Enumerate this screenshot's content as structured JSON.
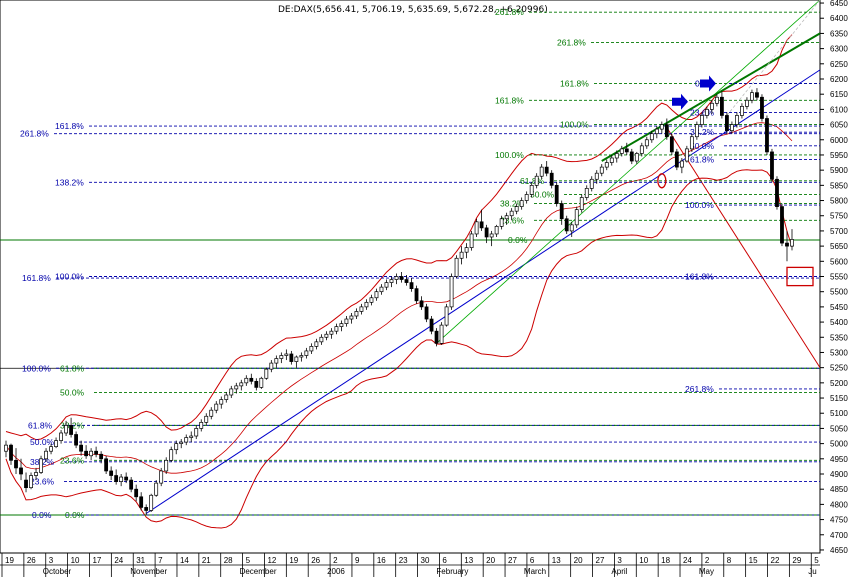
{
  "chart_data": {
    "type": "candlestick",
    "title": "DE:DAX(5,656.41, 5,706.19, 5,635.69, 5,672.28, +6.20996)",
    "ylim": [
      4640,
      6460
    ],
    "y_ticks": [
      4650,
      4700,
      4750,
      4800,
      4850,
      4900,
      4950,
      5000,
      5050,
      5100,
      5150,
      5200,
      5250,
      5300,
      5350,
      5400,
      5450,
      5500,
      5550,
      5600,
      5650,
      5700,
      5750,
      5800,
      5850,
      5900,
      5950,
      6000,
      6050,
      6100,
      6150,
      6200,
      6250,
      6300,
      6350,
      6400,
      6450
    ],
    "x_ticks": [
      "19",
      "26",
      "3",
      "10",
      "17",
      "24",
      "31",
      "7",
      "14",
      "21",
      "28",
      "5",
      "12",
      "19",
      "26",
      "2",
      "9",
      "16",
      "23",
      "30",
      "6",
      "13",
      "20",
      "27",
      "6",
      "13",
      "20",
      "27",
      "3",
      "10",
      "18",
      "24",
      "2",
      "8",
      "15",
      "22",
      "29",
      "5"
    ],
    "months": [
      "October",
      "November",
      "December",
      "2006",
      "February",
      "March",
      "April",
      "May",
      "Ju"
    ],
    "candles": [
      [
        4975,
        5010,
        4955,
        4995
      ],
      [
        4995,
        5000,
        4930,
        4945
      ],
      [
        4945,
        4985,
        4900,
        4920
      ],
      [
        4920,
        4950,
        4880,
        4900
      ],
      [
        4880,
        4905,
        4840,
        4855
      ],
      [
        4855,
        4905,
        4850,
        4895
      ],
      [
        4895,
        4920,
        4880,
        4905
      ],
      [
        4905,
        4960,
        4900,
        4950
      ],
      [
        4950,
        4985,
        4940,
        4975
      ],
      [
        4975,
        5000,
        4965,
        4990
      ],
      [
        4990,
        5020,
        4985,
        5010
      ],
      [
        5010,
        5045,
        5000,
        5035
      ],
      [
        5035,
        5075,
        5025,
        5060
      ],
      [
        5060,
        5085,
        5020,
        5030
      ],
      [
        5030,
        5040,
        4985,
        4995
      ],
      [
        4995,
        5010,
        4960,
        4975
      ],
      [
        4975,
        4995,
        4950,
        4960
      ],
      [
        4960,
        4985,
        4945,
        4975
      ],
      [
        4975,
        4990,
        4955,
        4965
      ],
      [
        4965,
        4975,
        4935,
        4950
      ],
      [
        4950,
        4960,
        4900,
        4910
      ],
      [
        4910,
        4925,
        4880,
        4895
      ],
      [
        4895,
        4915,
        4865,
        4875
      ],
      [
        4875,
        4900,
        4860,
        4890
      ],
      [
        4890,
        4905,
        4870,
        4880
      ],
      [
        4880,
        4890,
        4840,
        4850
      ],
      [
        4850,
        4865,
        4810,
        4825
      ],
      [
        4825,
        4840,
        4780,
        4790
      ],
      [
        4790,
        4800,
        4765,
        4780
      ],
      [
        4780,
        4835,
        4775,
        4830
      ],
      [
        4830,
        4880,
        4825,
        4870
      ],
      [
        4870,
        4920,
        4860,
        4910
      ],
      [
        4910,
        4955,
        4900,
        4945
      ],
      [
        4945,
        4990,
        4940,
        4980
      ],
      [
        4980,
        5010,
        4965,
        5000
      ],
      [
        5000,
        5015,
        4985,
        5005
      ],
      [
        5005,
        5030,
        4995,
        5020
      ],
      [
        5020,
        5040,
        5005,
        5025
      ],
      [
        5025,
        5060,
        5015,
        5050
      ],
      [
        5050,
        5080,
        5040,
        5070
      ],
      [
        5070,
        5100,
        5060,
        5090
      ],
      [
        5090,
        5120,
        5080,
        5110
      ],
      [
        5110,
        5140,
        5100,
        5130
      ],
      [
        5130,
        5155,
        5115,
        5145
      ],
      [
        5145,
        5170,
        5135,
        5160
      ],
      [
        5160,
        5190,
        5150,
        5180
      ],
      [
        5180,
        5200,
        5165,
        5190
      ],
      [
        5190,
        5210,
        5175,
        5200
      ],
      [
        5200,
        5225,
        5190,
        5215
      ],
      [
        5215,
        5230,
        5195,
        5205
      ],
      [
        5205,
        5215,
        5175,
        5185
      ],
      [
        5185,
        5220,
        5180,
        5215
      ],
      [
        5215,
        5250,
        5210,
        5245
      ],
      [
        5245,
        5275,
        5235,
        5265
      ],
      [
        5265,
        5290,
        5250,
        5280
      ],
      [
        5280,
        5300,
        5265,
        5290
      ],
      [
        5290,
        5310,
        5275,
        5295
      ],
      [
        5295,
        5305,
        5260,
        5270
      ],
      [
        5270,
        5290,
        5250,
        5285
      ],
      [
        5285,
        5300,
        5270,
        5290
      ],
      [
        5290,
        5315,
        5280,
        5305
      ],
      [
        5305,
        5330,
        5295,
        5320
      ],
      [
        5320,
        5345,
        5310,
        5335
      ],
      [
        5335,
        5360,
        5325,
        5350
      ],
      [
        5350,
        5370,
        5340,
        5360
      ],
      [
        5360,
        5380,
        5345,
        5370
      ],
      [
        5370,
        5395,
        5360,
        5385
      ],
      [
        5385,
        5405,
        5370,
        5395
      ],
      [
        5395,
        5420,
        5385,
        5410
      ],
      [
        5410,
        5430,
        5395,
        5420
      ],
      [
        5420,
        5445,
        5410,
        5435
      ],
      [
        5435,
        5460,
        5425,
        5450
      ],
      [
        5450,
        5475,
        5440,
        5465
      ],
      [
        5465,
        5490,
        5455,
        5480
      ],
      [
        5480,
        5510,
        5470,
        5500
      ],
      [
        5500,
        5525,
        5490,
        5515
      ],
      [
        5515,
        5540,
        5505,
        5530
      ],
      [
        5530,
        5550,
        5515,
        5540
      ],
      [
        5540,
        5560,
        5525,
        5550
      ],
      [
        5550,
        5565,
        5530,
        5540
      ],
      [
        5540,
        5555,
        5520,
        5530
      ],
      [
        5530,
        5545,
        5500,
        5510
      ],
      [
        5510,
        5520,
        5460,
        5470
      ],
      [
        5470,
        5485,
        5440,
        5450
      ],
      [
        5450,
        5460,
        5400,
        5410
      ],
      [
        5410,
        5420,
        5360,
        5370
      ],
      [
        5370,
        5380,
        5320,
        5330
      ],
      [
        5330,
        5400,
        5325,
        5390
      ],
      [
        5390,
        5460,
        5385,
        5450
      ],
      [
        5450,
        5560,
        5440,
        5550
      ],
      [
        5550,
        5620,
        5545,
        5610
      ],
      [
        5610,
        5650,
        5590,
        5630
      ],
      [
        5630,
        5660,
        5610,
        5645
      ],
      [
        5645,
        5700,
        5635,
        5690
      ],
      [
        5690,
        5740,
        5680,
        5730
      ],
      [
        5730,
        5770,
        5700,
        5710
      ],
      [
        5710,
        5720,
        5660,
        5680
      ],
      [
        5680,
        5700,
        5650,
        5690
      ],
      [
        5690,
        5720,
        5680,
        5715
      ],
      [
        5715,
        5750,
        5705,
        5740
      ],
      [
        5740,
        5760,
        5720,
        5750
      ],
      [
        5750,
        5775,
        5735,
        5765
      ],
      [
        5765,
        5790,
        5755,
        5780
      ],
      [
        5780,
        5810,
        5770,
        5800
      ],
      [
        5800,
        5830,
        5790,
        5820
      ],
      [
        5820,
        5860,
        5810,
        5850
      ],
      [
        5850,
        5890,
        5840,
        5880
      ],
      [
        5880,
        5920,
        5870,
        5910
      ],
      [
        5910,
        5930,
        5880,
        5890
      ],
      [
        5890,
        5900,
        5840,
        5850
      ],
      [
        5850,
        5860,
        5780,
        5790
      ],
      [
        5790,
        5800,
        5720,
        5740
      ],
      [
        5740,
        5750,
        5690,
        5700
      ],
      [
        5700,
        5730,
        5680,
        5720
      ],
      [
        5720,
        5780,
        5710,
        5770
      ],
      [
        5770,
        5820,
        5760,
        5810
      ],
      [
        5810,
        5850,
        5800,
        5840
      ],
      [
        5840,
        5880,
        5830,
        5870
      ],
      [
        5870,
        5900,
        5855,
        5890
      ],
      [
        5890,
        5920,
        5880,
        5910
      ],
      [
        5910,
        5935,
        5900,
        5925
      ],
      [
        5925,
        5950,
        5915,
        5940
      ],
      [
        5940,
        5965,
        5925,
        5955
      ],
      [
        5955,
        5980,
        5945,
        5970
      ],
      [
        5970,
        5990,
        5950,
        5960
      ],
      [
        5960,
        5970,
        5920,
        5930
      ],
      [
        5930,
        5960,
        5920,
        5955
      ],
      [
        5955,
        5990,
        5945,
        5980
      ],
      [
        5980,
        6010,
        5970,
        6000
      ],
      [
        6000,
        6030,
        5990,
        6020
      ],
      [
        6020,
        6045,
        6005,
        6035
      ],
      [
        6035,
        6060,
        6020,
        6050
      ],
      [
        6050,
        6070,
        6000,
        6010
      ],
      [
        6010,
        6020,
        5950,
        5960
      ],
      [
        5960,
        5970,
        5900,
        5910
      ],
      [
        5910,
        5940,
        5890,
        5930
      ],
      [
        5930,
        5980,
        5925,
        5970
      ],
      [
        5970,
        6020,
        5960,
        6010
      ],
      [
        6010,
        6060,
        6000,
        6050
      ],
      [
        6050,
        6090,
        6040,
        6080
      ],
      [
        6080,
        6110,
        6070,
        6100
      ],
      [
        6100,
        6130,
        6085,
        6120
      ],
      [
        6120,
        6150,
        6110,
        6140
      ],
      [
        6140,
        6160,
        6070,
        6080
      ],
      [
        6080,
        6090,
        6020,
        6030
      ],
      [
        6030,
        6060,
        6020,
        6050
      ],
      [
        6050,
        6090,
        6040,
        6080
      ],
      [
        6080,
        6120,
        6070,
        6110
      ],
      [
        6110,
        6140,
        6100,
        6130
      ],
      [
        6130,
        6165,
        6120,
        6155
      ],
      [
        6155,
        6170,
        6130,
        6140
      ],
      [
        6140,
        6150,
        6060,
        6070
      ],
      [
        6070,
        6080,
        5950,
        5960
      ],
      [
        5960,
        5970,
        5860,
        5870
      ],
      [
        5870,
        5880,
        5770,
        5780
      ],
      [
        5780,
        5790,
        5650,
        5660
      ],
      [
        5660,
        5700,
        5600,
        5650
      ],
      [
        5650,
        5706,
        5636,
        5672
      ]
    ],
    "indicators": [
      "Bollinger Bands",
      "Fibonacci retracements and extensions",
      "trend lines"
    ],
    "fib_lines": [
      {
        "label": "261.8%",
        "value": 6420,
        "color": "#007700"
      },
      {
        "label": "261.8%",
        "value": 6320,
        "color": "#007700"
      },
      {
        "label": "161.8%",
        "value": 6185,
        "color": "#007700"
      },
      {
        "label": "0.0%",
        "value": 6185,
        "color": "#0000aa"
      },
      {
        "label": "161.8%",
        "value": 6130,
        "color": "#007700"
      },
      {
        "label": "23.6%",
        "value": 6090,
        "color": "#0000aa"
      },
      {
        "label": "100.0%",
        "value": 6050,
        "color": "#007700"
      },
      {
        "label": "38.2%",
        "value": 6025,
        "color": "#0000aa"
      },
      {
        "label": "161.8%",
        "value": 6045,
        "color": "#0000aa"
      },
      {
        "label": "261.8%",
        "value": 6020,
        "color": "#0000aa"
      },
      {
        "label": "50.0%",
        "value": 5980,
        "color": "#0000aa"
      },
      {
        "label": "100.0%",
        "value": 5950,
        "color": "#007700"
      },
      {
        "label": "61.8%",
        "value": 5935,
        "color": "#0000aa"
      },
      {
        "label": "138.2%",
        "value": 5860,
        "color": "#0000aa"
      },
      {
        "label": "61.8%",
        "value": 5865,
        "color": "#007700"
      },
      {
        "label": "50.0%",
        "value": 5820,
        "color": "#007700"
      },
      {
        "label": "100.0%",
        "value": 5785,
        "color": "#0000aa"
      },
      {
        "label": "38.2%",
        "value": 5790,
        "color": "#007700"
      },
      {
        "label": "23.6%",
        "value": 5735,
        "color": "#007700"
      },
      {
        "label": "0.0%",
        "value": 5670,
        "color": "#007700"
      },
      {
        "label": "161.8%",
        "value": 5550,
        "color": "#0000aa"
      },
      {
        "label": "100.0%",
        "value": 5550,
        "color": "#0000aa"
      },
      {
        "label": "161.8%",
        "value": 5545,
        "color": "#0000aa"
      },
      {
        "label": "100.0%",
        "value": 5248,
        "color": "#0000aa"
      },
      {
        "label": "61.8%",
        "value": 5248,
        "color": "#007700"
      },
      {
        "label": "261.8%",
        "value": 5180,
        "color": "#0000aa"
      },
      {
        "label": "50.0%",
        "value": 5168,
        "color": "#007700"
      },
      {
        "label": "61.8%",
        "value": 5060,
        "color": "#0000aa"
      },
      {
        "label": "38.2%",
        "value": 5060,
        "color": "#007700"
      },
      {
        "label": "50.0%",
        "value": 5005,
        "color": "#0000aa"
      },
      {
        "label": "38.2%",
        "value": 4940,
        "color": "#0000aa"
      },
      {
        "label": "23.6%",
        "value": 4945,
        "color": "#007700"
      },
      {
        "label": "23.6%",
        "value": 4875,
        "color": "#0000aa"
      },
      {
        "label": "0.0%",
        "value": 4765,
        "color": "#0000aa"
      },
      {
        "label": "0.0%",
        "value": 4765,
        "color": "#007700"
      }
    ]
  }
}
